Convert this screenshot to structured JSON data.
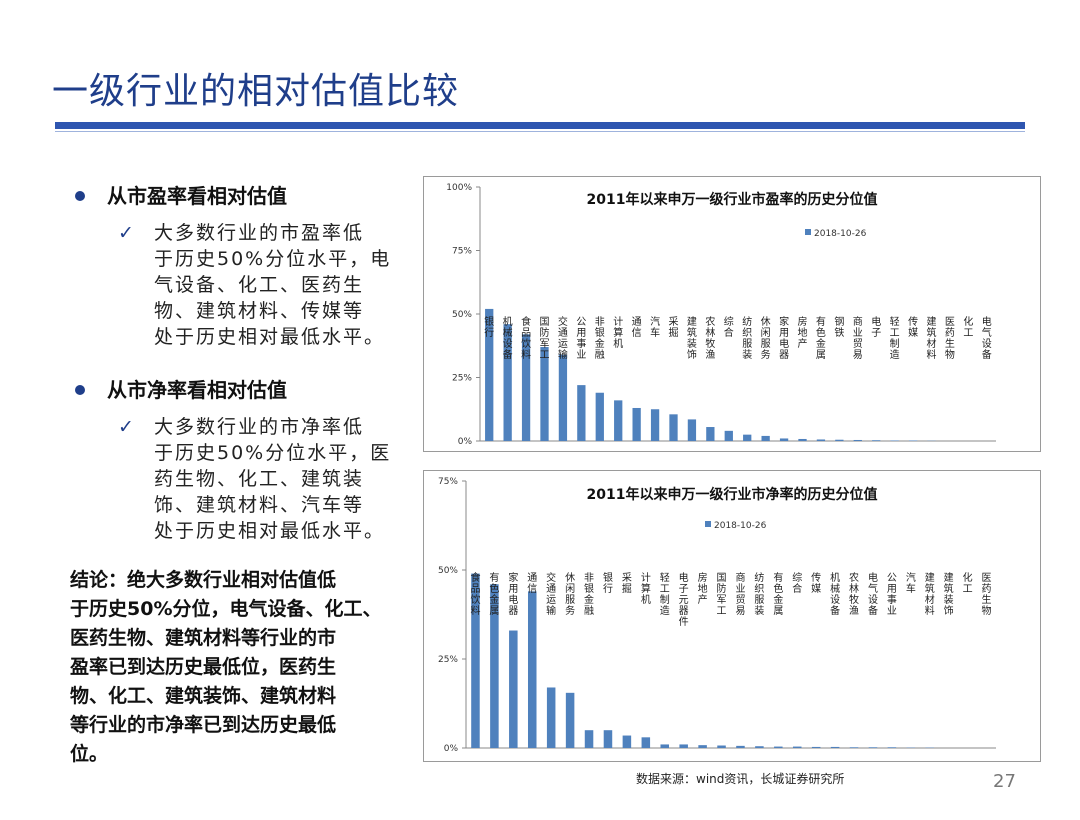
{
  "slide": {
    "title": "一级行业的相对估值比较",
    "sections": [
      {
        "heading": "从市盈率看相对估值",
        "lines": [
          "大多数行业的市盈率低",
          "于历史50%分位水平，电",
          "气设备、化工、医药生",
          "物、建筑材料、传媒等",
          "处于历史相对最低水平。"
        ]
      },
      {
        "heading": "从市净率看相对估值",
        "lines": [
          "大多数行业的市净率低",
          "于历史50%分位水平，医",
          "药生物、化工、建筑装",
          "饰、建筑材料、汽车等",
          "处于历史相对最低水平。"
        ]
      }
    ],
    "check_mark": "✓",
    "conclusion_lines": [
      "结论：绝大多数行业相对估值低",
      "于历史50%分位，电气设备、化工、",
      "医药生物、建筑材料等行业的市",
      "盈率已到达历史最低位，医药生",
      "物、化工、建筑装饰、建筑材料",
      "等行业的市净率已到达历史最低",
      "位。"
    ],
    "source": "数据来源：wind资讯，长城证券研究所",
    "page_number": "27"
  },
  "chart_data": [
    {
      "type": "bar",
      "title": "2011年以来申万一级行业市盈率的历史分位值",
      "series": [
        {
          "name": "2018-10-26",
          "values": [
            0.52,
            0.46,
            0.42,
            0.37,
            0.34,
            0.22,
            0.19,
            0.16,
            0.13,
            0.125,
            0.105,
            0.085,
            0.055,
            0.04,
            0.025,
            0.02,
            0.01,
            0.008,
            0.006,
            0.005,
            0.004,
            0.003,
            0.002,
            0.002,
            0.001,
            0.0,
            0.0,
            0.0
          ]
        }
      ],
      "categories": [
        "银行",
        "机械设备",
        "食品饮料",
        "国防军工",
        "交通运输",
        "公用事业",
        "非银金融",
        "计算机",
        "通信",
        "汽车",
        "采掘",
        "建筑装饰",
        "农林牧渔",
        "综合",
        "纺织服装",
        "休闲服务",
        "家用电器",
        "房地产",
        "有色金属",
        "钢铁",
        "商业贸易",
        "电子",
        "轻工制造",
        "传媒",
        "建筑材料",
        "医药生物",
        "化工",
        "电气设备"
      ],
      "yticks": [
        "0%",
        "25%",
        "50%",
        "75%",
        "100%"
      ],
      "ylim": [
        0,
        1
      ],
      "legend_position": "top-center",
      "bar_color": "#4f81bd"
    },
    {
      "type": "bar",
      "title": "2011年以来申万一级行业市净率的历史分位值",
      "series": [
        {
          "name": "2018-10-26",
          "values": [
            0.49,
            0.46,
            0.33,
            0.44,
            0.17,
            0.155,
            0.05,
            0.05,
            0.035,
            0.03,
            0.01,
            0.01,
            0.008,
            0.007,
            0.006,
            0.005,
            0.004,
            0.004,
            0.003,
            0.003,
            0.002,
            0.002,
            0.002,
            0.001,
            0.001,
            0.0,
            0.0,
            0.0
          ]
        }
      ],
      "categories": [
        "食品饮料",
        "有色金属",
        "家用电器",
        "通信",
        "交通运输",
        "休闲服务",
        "非银金融",
        "银行",
        "采掘",
        "计算机",
        "轻工制造",
        "电子元器件",
        "房地产",
        "国防军工",
        "商业贸易",
        "纺织服装",
        "有色金属",
        "综合",
        "传媒",
        "机械设备",
        "农林牧渔",
        "电气设备",
        "公用事业",
        "汽车",
        "建筑材料",
        "建筑装饰",
        "化工",
        "医药生物"
      ],
      "yticks": [
        "0%",
        "25%",
        "50%",
        "75%"
      ],
      "ylim": [
        0,
        0.75
      ],
      "legend_position": "top-center",
      "bar_color": "#4f81bd"
    }
  ]
}
